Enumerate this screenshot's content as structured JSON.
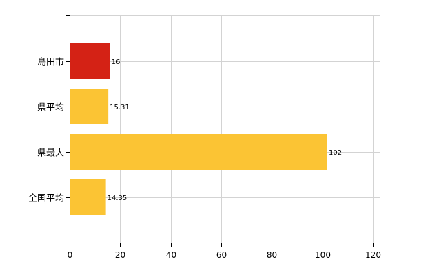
{
  "chart_data": {
    "type": "bar",
    "orientation": "horizontal",
    "categories": [
      "島田市",
      "県平均",
      "県最大",
      "全国平均"
    ],
    "values": [
      16,
      15.31,
      102,
      14.35
    ],
    "value_labels": [
      "16",
      "15.31",
      "102",
      "14.35"
    ],
    "colors": [
      "#d42215",
      "#fbc434",
      "#fbc434",
      "#fbc434"
    ],
    "xlim": [
      0,
      120
    ],
    "xticks": [
      0,
      20,
      40,
      60,
      80,
      100,
      120
    ],
    "xtick_labels": [
      "0",
      "20",
      "40",
      "60",
      "80",
      "100",
      "120"
    ],
    "grid": true,
    "title": "",
    "xlabel": "",
    "ylabel": ""
  }
}
